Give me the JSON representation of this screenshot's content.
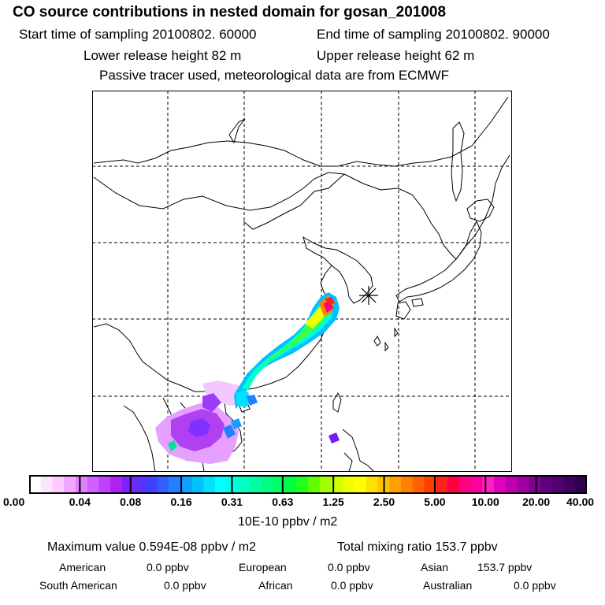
{
  "title": "CO  source contributions in nested domain for gosan_201008",
  "sampling": {
    "start": "Start time of sampling 20100802. 60000",
    "end": "End time of sampling 20100802. 90000"
  },
  "release": {
    "lower": "Lower release height   82 m",
    "upper": "Upper release height   62 m"
  },
  "note": "Passive tracer used, meteorological data are from ECMWF",
  "map": {
    "receptor_symbol": "asterisk receptor marker (Gosan)",
    "plume_colors": [
      "#a020f0",
      "#4a55ff",
      "#0090ff",
      "#00e8ff",
      "#00ff70",
      "#ffff00",
      "#ff1010",
      "#ff00a0"
    ]
  },
  "colorbar": {
    "tick_labels": [
      "0.00",
      "0.04",
      "0.08",
      "0.16",
      "0.31",
      "0.63",
      "1.25",
      "2.50",
      "5.00",
      "10.00",
      "20.00",
      "40.00"
    ],
    "colors": [
      "#ffffff",
      "#ffe4ff",
      "#ffc8ff",
      "#f0a8ff",
      "#e080ff",
      "#d060ff",
      "#c040ff",
      "#b020f0",
      "#8020ff",
      "#6030ff",
      "#4040ff",
      "#3060ff",
      "#2080ff",
      "#10a0ff",
      "#00c0ff",
      "#00e0ff",
      "#00ffff",
      "#00ffe0",
      "#00ffc0",
      "#00ffa0",
      "#00ff80",
      "#00ff60",
      "#00ff40",
      "#20ff20",
      "#60ff00",
      "#a0ff00",
      "#d0ff00",
      "#f0ff00",
      "#ffff00",
      "#ffe000",
      "#ffc000",
      "#ffa000",
      "#ff8000",
      "#ff6000",
      "#ff4000",
      "#ff2020",
      "#ff0040",
      "#ff0080",
      "#ff00a0",
      "#ff20c0",
      "#e000c0",
      "#c000b0",
      "#a000a0",
      "#800090",
      "#600080",
      "#500070",
      "#400060",
      "#300050"
    ],
    "units": "10E-10 ppbv / m2"
  },
  "summary": {
    "max_value": "Maximum value  0.594E-08 ppbv / m2",
    "total": "Total mixing ratio      153.7 ppbv",
    "regions": [
      {
        "name": "American",
        "value": "0.0 ppbv"
      },
      {
        "name": "European",
        "value": "0.0 ppbv"
      },
      {
        "name": "Asian",
        "value": "153.7 ppbv"
      },
      {
        "name": "South American",
        "value": "0.0 ppbv"
      },
      {
        "name": "African",
        "value": "0.0 ppbv"
      },
      {
        "name": "Australian",
        "value": "0.0 ppbv"
      }
    ]
  }
}
